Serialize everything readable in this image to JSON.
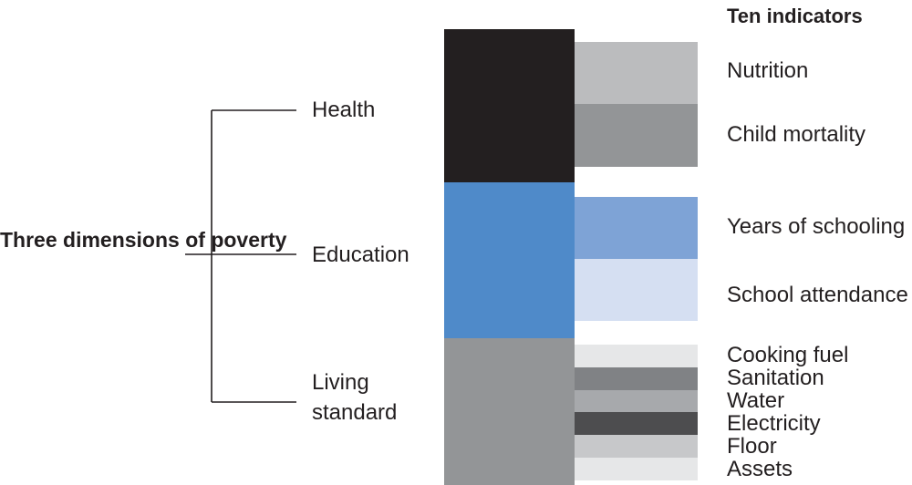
{
  "title": "Three dimensions of poverty",
  "indicators_heading": "Ten indicators",
  "dimensions": [
    {
      "label": "Health",
      "color": "#231f20",
      "indicators": [
        {
          "label": "Nutrition",
          "color": "#bbbcbe"
        },
        {
          "label": "Child mortality",
          "color": "#939597"
        }
      ]
    },
    {
      "label": "Education",
      "color": "#4f8ac9",
      "indicators": [
        {
          "label": "Years of schooling",
          "color": "#7ea3d6"
        },
        {
          "label": "School attendance",
          "color": "#d5dff2"
        }
      ]
    },
    {
      "label": "Living standard",
      "label_lines": [
        "Living",
        "standard"
      ],
      "color": "#939597",
      "indicators": [
        {
          "label": "Cooking fuel",
          "color": "#e6e7e8"
        },
        {
          "label": "Sanitation",
          "color": "#808285"
        },
        {
          "label": "Water",
          "color": "#a7a9ac"
        },
        {
          "label": "Electricity",
          "color": "#4d4d4f"
        },
        {
          "label": "Floor",
          "color": "#c7c8ca"
        },
        {
          "label": "Assets",
          "color": "#e6e7e8"
        }
      ]
    }
  ]
}
